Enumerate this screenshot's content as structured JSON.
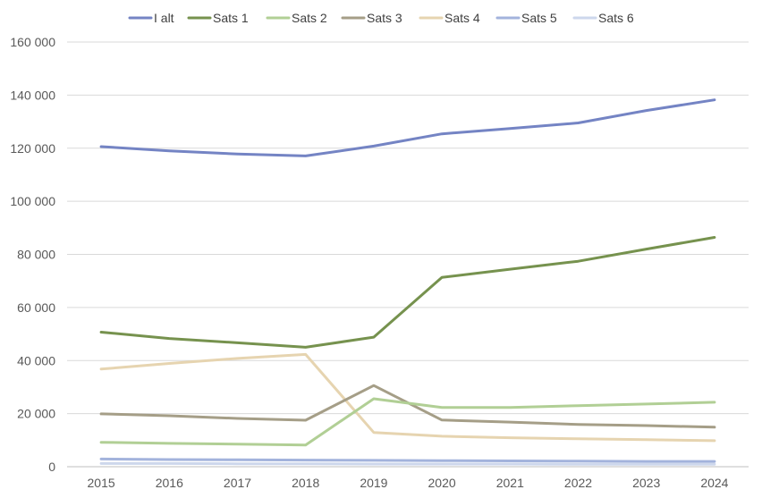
{
  "chart_data": {
    "type": "line",
    "title": "",
    "xlabel": "",
    "ylabel": "",
    "categories": [
      "2015",
      "2016",
      "2017",
      "2018",
      "2019",
      "2020",
      "2021",
      "2022",
      "2023",
      "2024"
    ],
    "ylim": [
      0,
      160000
    ],
    "yticks": [
      0,
      20000,
      40000,
      60000,
      80000,
      100000,
      120000,
      140000,
      160000
    ],
    "ytick_labels": [
      "0",
      "20 000",
      "40 000",
      "60 000",
      "80 000",
      "100 000",
      "120 000",
      "140 000",
      "160 000"
    ],
    "grid": "horizontal",
    "legend_position": "top",
    "series": [
      {
        "name": "I alt",
        "color": "#7484c4",
        "values": [
          120600,
          119000,
          117800,
          117100,
          120800,
          125400,
          127400,
          129500,
          134200,
          138200
        ]
      },
      {
        "name": "Sats 1",
        "color": "#76924e",
        "values": [
          50700,
          48300,
          46700,
          45000,
          48800,
          71300,
          74400,
          77400,
          82000,
          86400
        ]
      },
      {
        "name": "Sats 2",
        "color": "#b1cf95",
        "values": [
          9200,
          8800,
          8500,
          8200,
          25600,
          22300,
          22300,
          23000,
          23600,
          24300
        ]
      },
      {
        "name": "Sats 3",
        "color": "#a59e87",
        "values": [
          19900,
          19200,
          18200,
          17500,
          30600,
          17600,
          16800,
          15900,
          15500,
          14900
        ]
      },
      {
        "name": "Sats 4",
        "color": "#e6d4b0",
        "values": [
          36800,
          38900,
          40800,
          42300,
          12900,
          11500,
          10900,
          10500,
          10200,
          9800
        ]
      },
      {
        "name": "Sats 5",
        "color": "#a3b3dc",
        "values": [
          2900,
          2700,
          2600,
          2500,
          2400,
          2300,
          2200,
          2100,
          2000,
          2000
        ]
      },
      {
        "name": "Sats 6",
        "color": "#cdd7ec",
        "values": [
          1200,
          1200,
          1100,
          1100,
          1000,
          1000,
          1000,
          900,
          900,
          900
        ]
      }
    ]
  }
}
